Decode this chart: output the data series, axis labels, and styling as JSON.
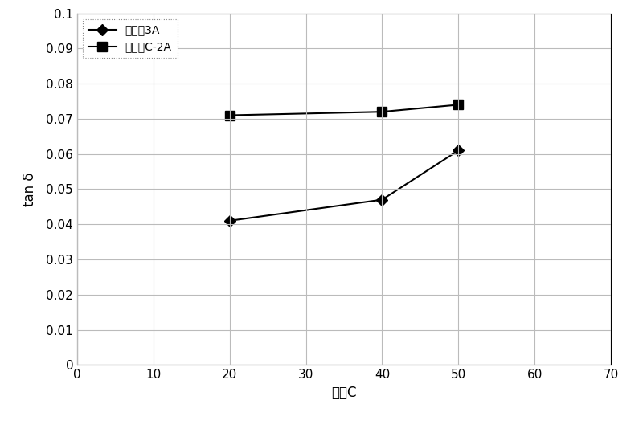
{
  "series1_label": "实施例3A",
  "series2_label": "实施例C-2A",
  "series1_x": [
    20,
    40,
    50
  ],
  "series1_y": [
    0.041,
    0.047,
    0.061
  ],
  "series2_x": [
    20,
    40,
    50
  ],
  "series2_y": [
    0.071,
    0.072,
    0.074
  ],
  "xlabel": "温度C",
  "ylabel": "tan δ",
  "xlim": [
    0,
    70
  ],
  "ylim": [
    0,
    0.1
  ],
  "xticks": [
    0,
    10,
    20,
    30,
    40,
    50,
    60,
    70
  ],
  "yticks": [
    0,
    0.01,
    0.02,
    0.03,
    0.04,
    0.05,
    0.06,
    0.07,
    0.08,
    0.09,
    0.1
  ],
  "ytick_labels": [
    "0",
    "0.01",
    "0.02",
    "0.03",
    "0.04",
    "0.05",
    "0.06",
    "0.07",
    "0.08",
    "0.09",
    "0.1"
  ],
  "line_color": "#000000",
  "marker1": "D",
  "marker2": "s",
  "markersize1": 7,
  "markersize2": 8,
  "linewidth": 1.5,
  "background_color": "#ffffff",
  "grid_color": "#bbbbbb",
  "legend_fontsize": 10,
  "axis_fontsize": 12,
  "tick_fontsize": 11,
  "chinese_font": "SimSun"
}
